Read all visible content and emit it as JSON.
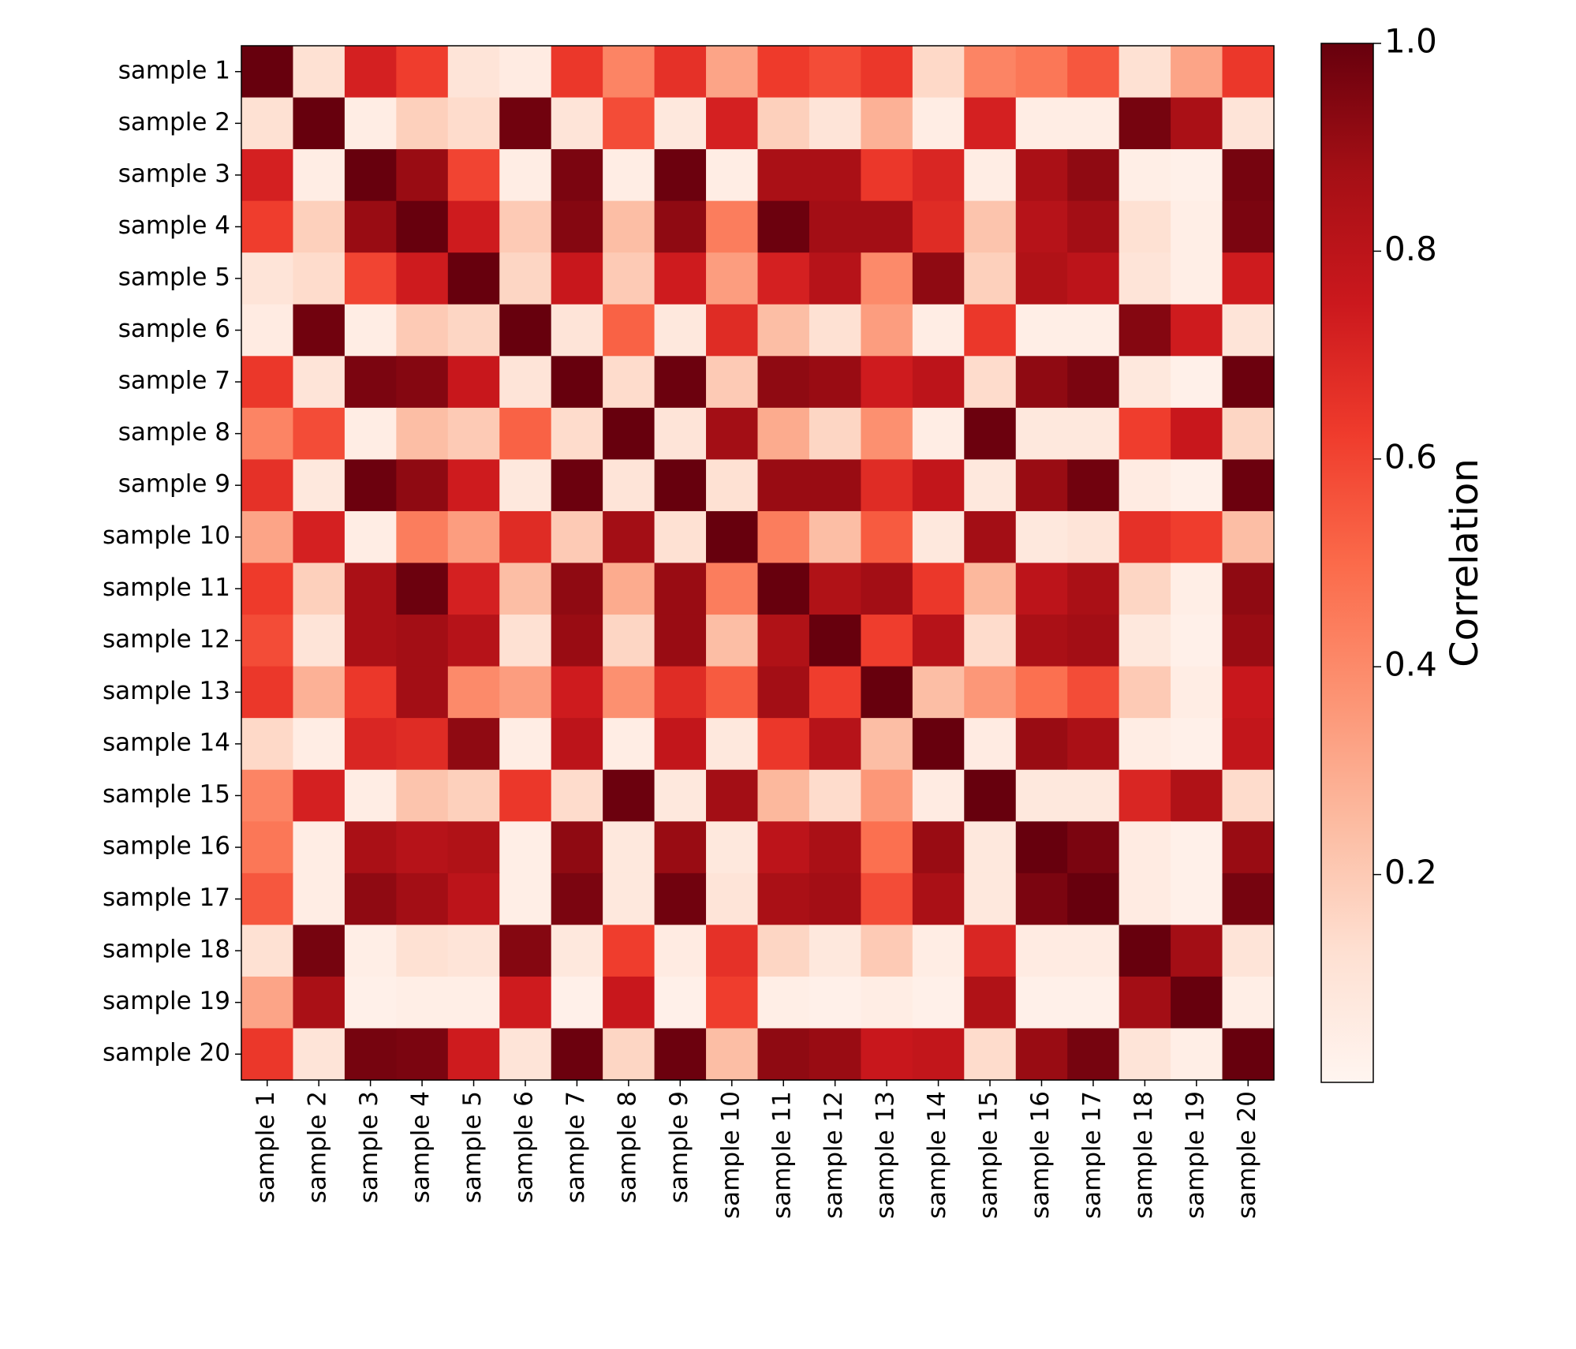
{
  "chart_data": {
    "type": "heatmap",
    "title": "",
    "xlabel": "",
    "ylabel": "",
    "rows": [
      "sample 1",
      "sample 2",
      "sample 3",
      "sample 4",
      "sample 5",
      "sample 6",
      "sample 7",
      "sample 8",
      "sample 9",
      "sample 10",
      "sample 11",
      "sample 12",
      "sample 13",
      "sample 14",
      "sample 15",
      "sample 16",
      "sample 17",
      "sample 18",
      "sample 19",
      "sample 20"
    ],
    "columns": [
      "sample 1",
      "sample 2",
      "sample 3",
      "sample 4",
      "sample 5",
      "sample 6",
      "sample 7",
      "sample 8",
      "sample 9",
      "sample 10",
      "sample 11",
      "sample 12",
      "sample 13",
      "sample 14",
      "sample 15",
      "sample 16",
      "sample 17",
      "sample 18",
      "sample 19",
      "sample 20"
    ],
    "values": [
      [
        1.0,
        0.12,
        0.72,
        0.62,
        0.1,
        0.06,
        0.64,
        0.42,
        0.66,
        0.32,
        0.63,
        0.58,
        0.64,
        0.15,
        0.42,
        0.46,
        0.55,
        0.12,
        0.32,
        0.64
      ],
      [
        0.12,
        1.0,
        0.05,
        0.18,
        0.14,
        0.98,
        0.1,
        0.58,
        0.08,
        0.72,
        0.18,
        0.1,
        0.28,
        0.05,
        0.72,
        0.05,
        0.05,
        0.97,
        0.86,
        0.1
      ],
      [
        0.72,
        0.05,
        1.0,
        0.9,
        0.6,
        0.05,
        0.96,
        0.05,
        0.99,
        0.05,
        0.86,
        0.86,
        0.64,
        0.7,
        0.05,
        0.86,
        0.92,
        0.04,
        0.03,
        0.97
      ],
      [
        0.62,
        0.18,
        0.9,
        1.0,
        0.74,
        0.2,
        0.94,
        0.24,
        0.92,
        0.44,
        0.99,
        0.88,
        0.88,
        0.68,
        0.22,
        0.82,
        0.88,
        0.12,
        0.04,
        0.96
      ],
      [
        0.1,
        0.14,
        0.6,
        0.74,
        1.0,
        0.16,
        0.76,
        0.2,
        0.74,
        0.34,
        0.72,
        0.82,
        0.4,
        0.92,
        0.18,
        0.84,
        0.8,
        0.1,
        0.04,
        0.74
      ],
      [
        0.06,
        0.98,
        0.05,
        0.2,
        0.16,
        1.0,
        0.1,
        0.52,
        0.08,
        0.68,
        0.24,
        0.12,
        0.34,
        0.05,
        0.64,
        0.04,
        0.04,
        0.94,
        0.74,
        0.1
      ],
      [
        0.64,
        0.1,
        0.96,
        0.94,
        0.76,
        0.1,
        1.0,
        0.14,
        0.99,
        0.2,
        0.92,
        0.9,
        0.74,
        0.8,
        0.14,
        0.92,
        0.96,
        0.08,
        0.03,
        0.99
      ],
      [
        0.42,
        0.58,
        0.05,
        0.24,
        0.2,
        0.52,
        0.14,
        1.0,
        0.1,
        0.88,
        0.3,
        0.16,
        0.38,
        0.05,
        0.99,
        0.08,
        0.08,
        0.62,
        0.76,
        0.16
      ],
      [
        0.66,
        0.08,
        0.99,
        0.92,
        0.74,
        0.08,
        0.99,
        0.1,
        1.0,
        0.12,
        0.9,
        0.9,
        0.68,
        0.78,
        0.08,
        0.9,
        0.98,
        0.06,
        0.03,
        0.99
      ],
      [
        0.32,
        0.72,
        0.05,
        0.44,
        0.34,
        0.68,
        0.2,
        0.88,
        0.12,
        1.0,
        0.44,
        0.24,
        0.54,
        0.08,
        0.88,
        0.08,
        0.1,
        0.66,
        0.62,
        0.24
      ],
      [
        0.63,
        0.18,
        0.86,
        0.99,
        0.72,
        0.24,
        0.92,
        0.3,
        0.9,
        0.44,
        1.0,
        0.84,
        0.88,
        0.64,
        0.26,
        0.8,
        0.86,
        0.16,
        0.04,
        0.92
      ],
      [
        0.58,
        0.1,
        0.86,
        0.88,
        0.82,
        0.12,
        0.9,
        0.16,
        0.9,
        0.24,
        0.84,
        1.0,
        0.62,
        0.82,
        0.14,
        0.86,
        0.88,
        0.08,
        0.03,
        0.9
      ],
      [
        0.64,
        0.28,
        0.64,
        0.88,
        0.4,
        0.34,
        0.74,
        0.38,
        0.68,
        0.54,
        0.88,
        0.62,
        1.0,
        0.24,
        0.36,
        0.48,
        0.58,
        0.2,
        0.05,
        0.76
      ],
      [
        0.15,
        0.05,
        0.7,
        0.68,
        0.92,
        0.05,
        0.8,
        0.05,
        0.78,
        0.08,
        0.64,
        0.82,
        0.24,
        1.0,
        0.06,
        0.9,
        0.86,
        0.05,
        0.03,
        0.78
      ],
      [
        0.42,
        0.72,
        0.05,
        0.22,
        0.18,
        0.64,
        0.14,
        0.99,
        0.08,
        0.88,
        0.26,
        0.14,
        0.36,
        0.06,
        1.0,
        0.08,
        0.08,
        0.7,
        0.84,
        0.14
      ],
      [
        0.46,
        0.05,
        0.86,
        0.82,
        0.84,
        0.04,
        0.92,
        0.08,
        0.9,
        0.08,
        0.8,
        0.86,
        0.48,
        0.9,
        0.08,
        1.0,
        0.96,
        0.06,
        0.03,
        0.9
      ],
      [
        0.55,
        0.05,
        0.92,
        0.88,
        0.8,
        0.04,
        0.96,
        0.08,
        0.98,
        0.1,
        0.86,
        0.88,
        0.58,
        0.86,
        0.08,
        0.96,
        1.0,
        0.06,
        0.03,
        0.97
      ],
      [
        0.12,
        0.97,
        0.04,
        0.12,
        0.1,
        0.94,
        0.08,
        0.62,
        0.06,
        0.66,
        0.16,
        0.08,
        0.2,
        0.05,
        0.7,
        0.06,
        0.06,
        1.0,
        0.88,
        0.1
      ],
      [
        0.32,
        0.86,
        0.03,
        0.04,
        0.04,
        0.74,
        0.03,
        0.76,
        0.03,
        0.62,
        0.04,
        0.03,
        0.05,
        0.03,
        0.84,
        0.03,
        0.03,
        0.88,
        1.0,
        0.04
      ],
      [
        0.64,
        0.1,
        0.97,
        0.96,
        0.74,
        0.1,
        0.99,
        0.16,
        0.99,
        0.24,
        0.92,
        0.9,
        0.76,
        0.78,
        0.14,
        0.9,
        0.97,
        0.1,
        0.04,
        1.0
      ]
    ],
    "colorbar": {
      "label": "Correlation",
      "ticks": [
        "0.2",
        "0.4",
        "0.6",
        "0.8",
        "1.0"
      ],
      "tick_values": [
        0.2,
        0.4,
        0.6,
        0.8,
        1.0
      ],
      "range": [
        0.0,
        1.0
      ],
      "colormap": "Reds"
    },
    "colors": [
      "#fff5f0",
      "#fee0d2",
      "#fcbba1",
      "#fc9272",
      "#fb6a4a",
      "#ef3b2c",
      "#cb181d",
      "#a50f15",
      "#67000d"
    ]
  }
}
